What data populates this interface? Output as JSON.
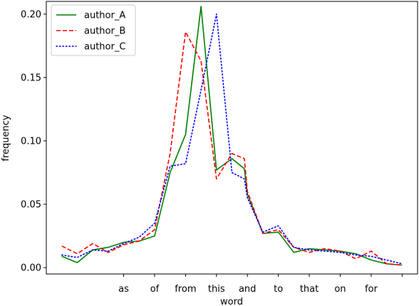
{
  "chart_data": {
    "type": "line",
    "xlabel": "word",
    "ylabel": "frequency",
    "x_ticks": [
      "as",
      "of",
      "from",
      "this",
      "and",
      "to",
      "that",
      "on",
      "for"
    ],
    "ylim": [
      -0.005,
      0.21
    ],
    "y_ticks": [
      "0.00",
      "0.05",
      "0.10",
      "0.15",
      "0.20"
    ],
    "y_tick_values": [
      0.0,
      0.05,
      0.1,
      0.15,
      0.2
    ],
    "grid": false,
    "legend_position": "top-left",
    "series": [
      {
        "name": "author_A",
        "color": "#008000",
        "dash": "solid",
        "x": [
          -2,
          -1.5,
          -1,
          -0.5,
          0,
          0.5,
          1,
          1.5,
          2,
          2.5,
          3,
          3.5,
          3.9,
          4,
          4.5,
          5,
          5.5,
          6,
          6.5,
          7,
          7.5,
          8,
          8.5,
          9
        ],
        "y": [
          0.009,
          0.004,
          0.014,
          0.016,
          0.02,
          0.021,
          0.025,
          0.075,
          0.105,
          0.206,
          0.077,
          0.086,
          0.078,
          0.058,
          0.027,
          0.028,
          0.012,
          0.015,
          0.014,
          0.013,
          0.011,
          0.006,
          0.003,
          0.002
        ]
      },
      {
        "name": "author_B",
        "color": "#ff0000",
        "dash": "dashed",
        "x": [
          -2,
          -1.5,
          -1,
          -0.5,
          0,
          0.5,
          1,
          1.5,
          2,
          2.5,
          3,
          3.5,
          3.9,
          4,
          4.5,
          5,
          5.5,
          6,
          6.5,
          7,
          7.5,
          8,
          8.5,
          9
        ],
        "y": [
          0.017,
          0.011,
          0.019,
          0.012,
          0.018,
          0.021,
          0.03,
          0.09,
          0.186,
          0.163,
          0.07,
          0.09,
          0.086,
          0.06,
          0.027,
          0.03,
          0.016,
          0.012,
          0.015,
          0.013,
          0.007,
          0.013,
          0.003,
          0.002
        ]
      },
      {
        "name": "author_C",
        "color": "#0000ff",
        "dash": "dotted",
        "x": [
          -2,
          -1.5,
          -1,
          -0.5,
          0,
          0.5,
          1,
          1.5,
          2,
          2.5,
          3,
          3.5,
          3.9,
          4,
          4.5,
          5,
          5.5,
          6,
          6.5,
          7,
          7.5,
          8,
          8.5,
          9
        ],
        "y": [
          0.01,
          0.008,
          0.014,
          0.013,
          0.019,
          0.024,
          0.035,
          0.08,
          0.082,
          0.14,
          0.2,
          0.075,
          0.07,
          0.055,
          0.028,
          0.033,
          0.016,
          0.014,
          0.013,
          0.012,
          0.01,
          0.009,
          0.006,
          0.003
        ]
      }
    ]
  }
}
